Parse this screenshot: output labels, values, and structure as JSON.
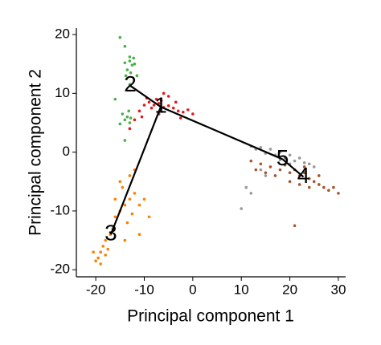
{
  "chart_data": {
    "type": "scatter",
    "x_label": "Principal component 1",
    "y_label": "Principal component 2",
    "xlim": [
      -24,
      31.5
    ],
    "ylim": [
      -21.2,
      21.1
    ],
    "xticks": [
      -20,
      -10,
      0,
      10,
      20,
      30
    ],
    "yticks": [
      -20,
      -10,
      0,
      10,
      20
    ],
    "series": [
      {
        "color": "#e41a1c",
        "x": [
          -9,
          -8,
          -7,
          -6,
          -5,
          -8.5,
          -7.5,
          -6.5,
          -4,
          -3,
          -2,
          -1,
          0,
          -10,
          -9.5,
          -11,
          -12,
          -13,
          -5,
          -3.5,
          -2.5,
          -7,
          -10.5,
          -6
        ],
        "y": [
          8.5,
          8,
          8.3,
          7.6,
          7.9,
          7.5,
          9,
          8.8,
          7.5,
          7,
          6.8,
          7.2,
          6.5,
          8,
          9.2,
          7,
          5.5,
          4,
          9.5,
          8.5,
          5.8,
          6.5,
          6,
          10
        ]
      },
      {
        "color": "#4daf4a",
        "x": [
          -13,
          -12.5,
          -13.5,
          -12,
          -13,
          -12.8,
          -14,
          -12.2,
          -15,
          -14,
          -13,
          -14,
          -13.5,
          -13,
          -14.5,
          -13.2,
          -12.8,
          -15,
          -14,
          -16,
          -11.5,
          -13.8
        ],
        "y": [
          15.5,
          14.8,
          14,
          15,
          16.2,
          13.5,
          15.2,
          16,
          19.5,
          18,
          11.5,
          5.5,
          6,
          5,
          6.5,
          7,
          5.8,
          4.8,
          2,
          9,
          13,
          13
        ]
      },
      {
        "color": "#ff7f00",
        "x": [
          -19,
          -18.5,
          -19.5,
          -18,
          -20,
          -18,
          -17,
          -16.5,
          -19,
          -20.5,
          -17.5,
          -16,
          -15,
          -14,
          -13,
          -12,
          -14.5,
          -13.5,
          -12.5,
          -11,
          -10,
          -15,
          -13,
          -16,
          -11,
          -12,
          -9,
          -14
        ],
        "y": [
          -17,
          -16,
          -18,
          -17.5,
          -18.5,
          -15,
          -14,
          -13,
          -19,
          -17,
          -16.5,
          -11,
          -10,
          -9,
          -8,
          -7,
          -6,
          -12,
          -10.5,
          -9,
          -8,
          -5,
          -4,
          -8,
          -14,
          -3,
          -11,
          -15
        ]
      },
      {
        "color": "#999999",
        "x": [
          14,
          16,
          18,
          20,
          22,
          24,
          17,
          19,
          21,
          23,
          15,
          13,
          12,
          25,
          20,
          18,
          11,
          10,
          12,
          14,
          15
        ],
        "y": [
          0.8,
          0.5,
          0,
          -0.5,
          -1,
          -2,
          -0.5,
          -1,
          -1.5,
          -1.8,
          -0.2,
          0.5,
          1,
          -2.5,
          -2,
          -1.3,
          -6,
          -9.6,
          -7,
          -3,
          -4
        ]
      },
      {
        "color": "#a65628",
        "x": [
          12,
          14,
          16,
          18,
          20,
          22,
          24,
          26,
          28,
          30,
          19,
          21,
          23,
          25,
          27,
          17,
          20,
          22,
          24,
          15,
          26,
          29,
          23,
          21,
          13
        ],
        "y": [
          -1.5,
          -2,
          -2.5,
          -3,
          -3.5,
          -4,
          -4.5,
          -5.5,
          -6.5,
          -7,
          -2.2,
          -3,
          -3.5,
          -5,
          -6,
          -4,
          -5,
          -5.5,
          -6,
          -3.5,
          -4,
          -6,
          -2.5,
          -12.5,
          -3
        ]
      }
    ],
    "nodes": {
      "labels": [
        "1",
        "2",
        "3",
        "4",
        "5"
      ],
      "x": [
        -6.6,
        -12.9,
        -16.9,
        22.8,
        18.5
      ],
      "y": [
        7.7,
        11.3,
        -14,
        -4.2,
        -1.2
      ]
    },
    "edges": [
      [
        1,
        0
      ],
      [
        0,
        2
      ],
      [
        0,
        4
      ],
      [
        4,
        3
      ]
    ]
  }
}
